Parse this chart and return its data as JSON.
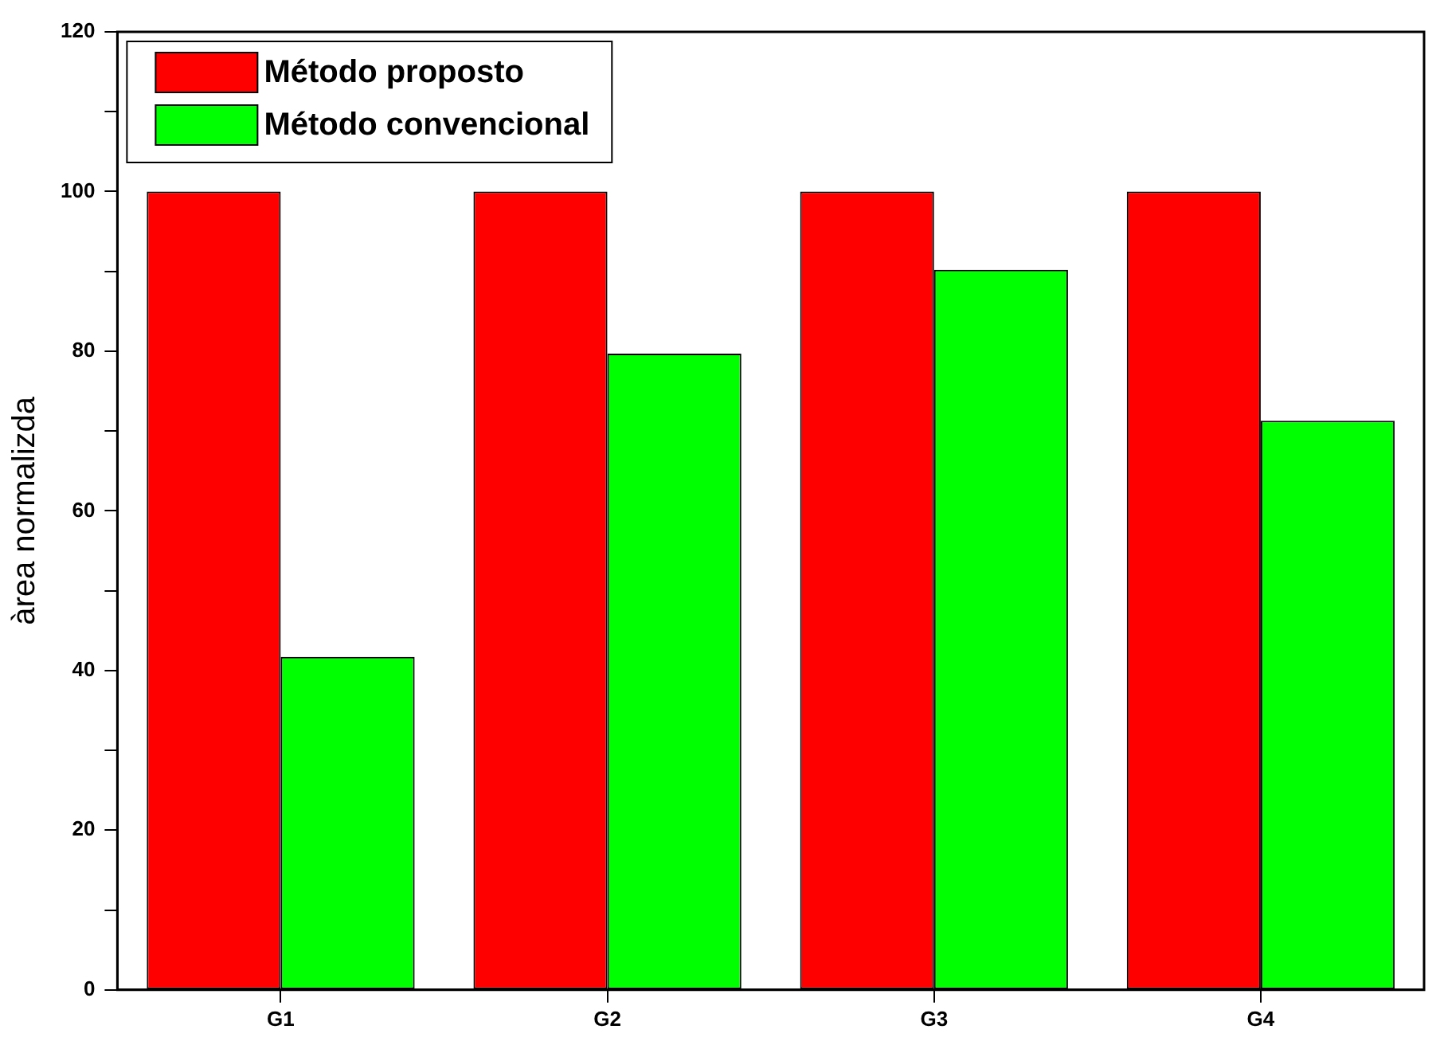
{
  "chart_data": {
    "type": "bar",
    "ylabel": "àrea normalizda",
    "categories": [
      "G1",
      "G2",
      "G3",
      "G4"
    ],
    "series": [
      {
        "name": "Método proposto",
        "color": "#ff0000",
        "values": [
          100,
          100,
          100,
          100
        ]
      },
      {
        "name": "Método convencional",
        "color": "#00ff00",
        "values": [
          41.7,
          79.7,
          90.2,
          71.3
        ]
      }
    ],
    "ylim": [
      0,
      120
    ],
    "yticks": [
      0,
      {
        "value": 10,
        "label": null
      },
      20,
      {
        "value": 30,
        "label": null
      },
      40,
      {
        "value": 50,
        "label": null
      },
      60,
      {
        "value": 70,
        "label": null
      },
      80,
      {
        "value": 90,
        "label": null
      },
      100,
      {
        "value": 110,
        "label": null
      },
      120
    ],
    "grid": false,
    "legend": "top left"
  }
}
